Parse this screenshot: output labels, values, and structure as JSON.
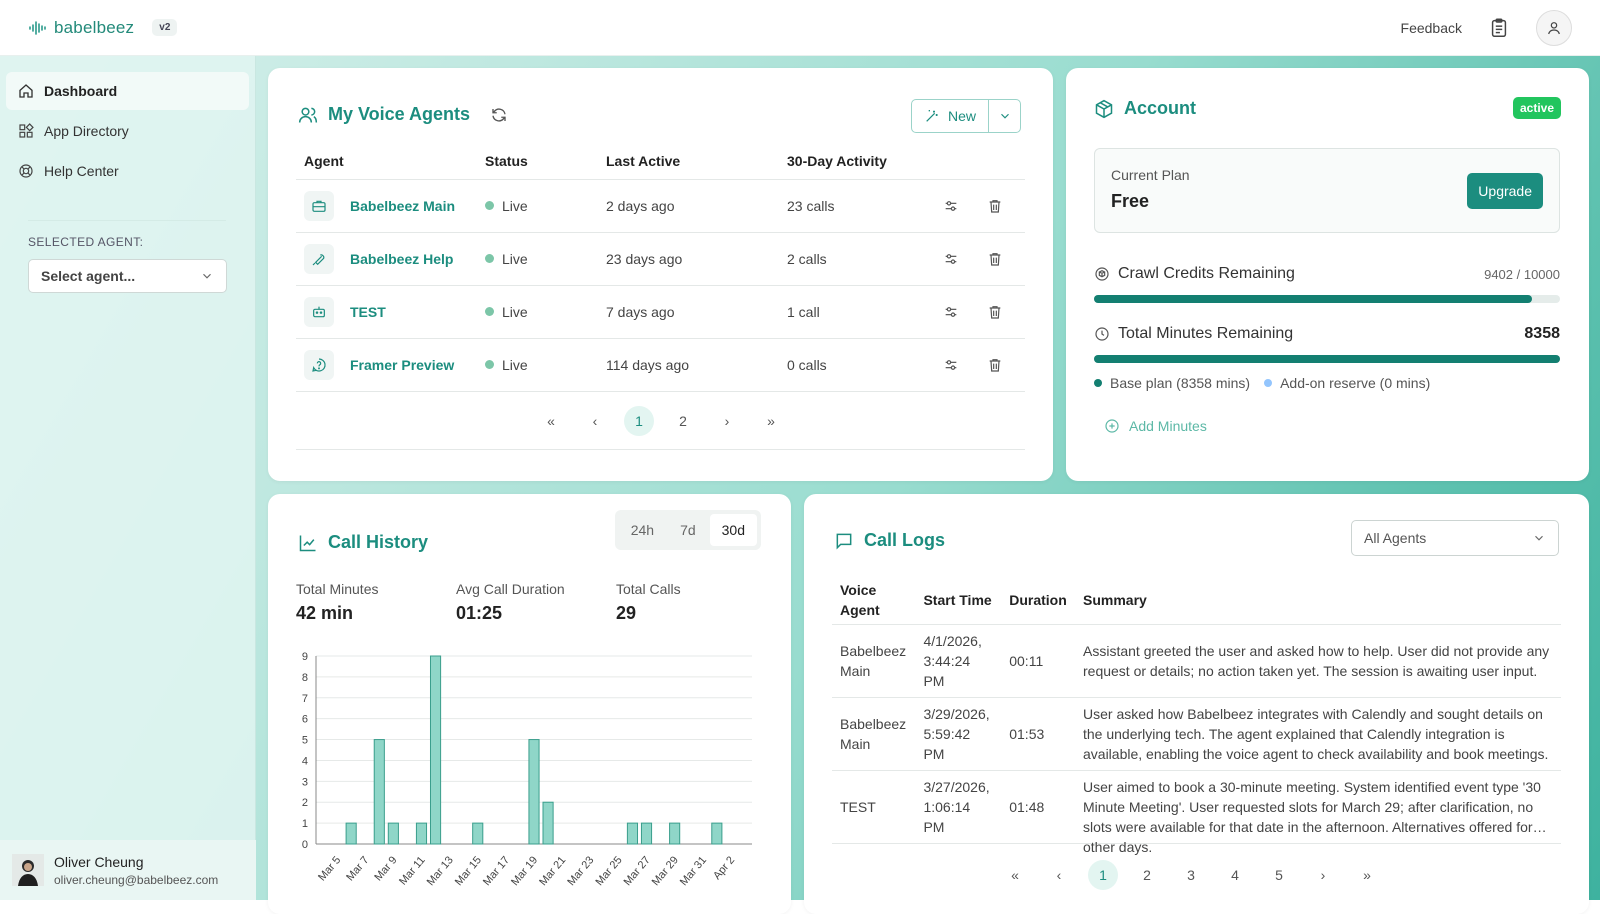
{
  "brand": {
    "name": "babelbeez",
    "version": "v2"
  },
  "top": {
    "feedback": "Feedback"
  },
  "sidebar": {
    "items": [
      {
        "label": "Dashboard",
        "icon": "home-icon"
      },
      {
        "label": "App Directory",
        "icon": "apps-icon"
      },
      {
        "label": "Help Center",
        "icon": "lifebuoy-icon"
      }
    ],
    "selected_agent_label": "SELECTED AGENT:",
    "selected_agent_placeholder": "Select agent..."
  },
  "user": {
    "name": "Oliver Cheung",
    "email": "oliver.cheung@babelbeez.com"
  },
  "agents": {
    "title": "My Voice Agents",
    "new_label": "New",
    "headers": [
      "Agent",
      "Status",
      "Last Active",
      "30-Day Activity"
    ],
    "rows": [
      {
        "name": "Babelbeez Main",
        "status": "Live",
        "last": "2 days ago",
        "activity": "23 calls",
        "icon": "briefcase-icon"
      },
      {
        "name": "Babelbeez Help",
        "status": "Live",
        "last": "23 days ago",
        "activity": "2 calls",
        "icon": "wrench-icon"
      },
      {
        "name": "TEST",
        "status": "Live",
        "last": "7 days ago",
        "activity": "1 call",
        "icon": "robot-icon"
      },
      {
        "name": "Framer Preview",
        "status": "Live",
        "last": "114 days ago",
        "activity": "0 calls",
        "icon": "help-circle-icon"
      }
    ],
    "pages": [
      "1",
      "2"
    ]
  },
  "account": {
    "title": "Account",
    "badge": "active",
    "plan_label": "Current Plan",
    "plan_value": "Free",
    "upgrade": "Upgrade",
    "credits_label": "Crawl Credits Remaining",
    "credits_value": "9402 / 10000",
    "credits_fraction": 0.9402,
    "minutes_label": "Total Minutes Remaining",
    "minutes_value": "8358",
    "minutes_fraction": 1.0,
    "base_plan": "Base plan (8358 mins)",
    "addon": "Add-on reserve (0 mins)",
    "add_minutes": "Add Minutes",
    "colors": {
      "bar": "#137f71",
      "base_dot": "#137f71",
      "addon_dot": "#93c5fd"
    }
  },
  "history": {
    "title": "Call History",
    "ranges": [
      "24h",
      "7d",
      "30d"
    ],
    "selected_range": "30d",
    "stats": [
      {
        "label": "Total Minutes",
        "value": "42 min"
      },
      {
        "label": "Avg Call Duration",
        "value": "01:25"
      },
      {
        "label": "Total Calls",
        "value": "29"
      }
    ]
  },
  "chart_data": {
    "type": "bar",
    "categories": [
      "Mar 4",
      "Mar 5",
      "Mar 6",
      "Mar 7",
      "Mar 8",
      "Mar 9",
      "Mar 10",
      "Mar 11",
      "Mar 12",
      "Mar 13",
      "Mar 14",
      "Mar 15",
      "Mar 16",
      "Mar 17",
      "Mar 18",
      "Mar 19",
      "Mar 20",
      "Mar 21",
      "Mar 22",
      "Mar 23",
      "Mar 24",
      "Mar 25",
      "Mar 26",
      "Mar 27",
      "Mar 28",
      "Mar 29",
      "Mar 30",
      "Mar 31",
      "Apr 1",
      "Apr 2",
      "Apr 3"
    ],
    "values": [
      0,
      0,
      1,
      0,
      5,
      1,
      0,
      1,
      9,
      0,
      0,
      1,
      0,
      0,
      0,
      5,
      2,
      0,
      0,
      0,
      0,
      0,
      1,
      1,
      0,
      1,
      0,
      0,
      1,
      0,
      0
    ],
    "tick_labels": [
      "Mar 5",
      "Mar 7",
      "Mar 9",
      "Mar 11",
      "Mar 13",
      "Mar 15",
      "Mar 17",
      "Mar 19",
      "Mar 21",
      "Mar 23",
      "Mar 25",
      "Mar 27",
      "Mar 29",
      "Mar 31",
      "Apr 2"
    ],
    "yticks": [
      0,
      1,
      2,
      3,
      4,
      5,
      6,
      7,
      8,
      9
    ],
    "ylim": [
      0,
      9
    ],
    "grid": true,
    "colors": {
      "bar_fill": "#8fd6c8",
      "bar_stroke": "#3a9e8c"
    }
  },
  "logs": {
    "title": "Call Logs",
    "filter": "All Agents",
    "headers": [
      "Voice Agent",
      "Start Time",
      "Duration",
      "Summary"
    ],
    "rows": [
      {
        "agent": "Babelbeez Main",
        "start": "4/1/2026, 3:44:24 PM",
        "duration": "00:11",
        "summary": "Assistant greeted the user and asked how to help. User did not provide any request or details; no action taken yet. The session is awaiting user input."
      },
      {
        "agent": "Babelbeez Main",
        "start": "3/29/2026, 5:59:42 PM",
        "duration": "01:53",
        "summary": "User asked how Babelbeez integrates with Calendly and sought details on the underlying tech. The agent explained that Calendly integration is available, enabling the voice agent to check availability and book meetings."
      },
      {
        "agent": "TEST",
        "start": "3/27/2026, 1:06:14 PM",
        "duration": "01:48",
        "summary": "User aimed to book a 30-minute meeting. System identified event type '30 Minute Meeting'. User requested slots for March 29; after clarification, no slots were available for that date in the afternoon. Alternatives offered for other days."
      }
    ],
    "pages": [
      "1",
      "2",
      "3",
      "4",
      "5"
    ]
  }
}
